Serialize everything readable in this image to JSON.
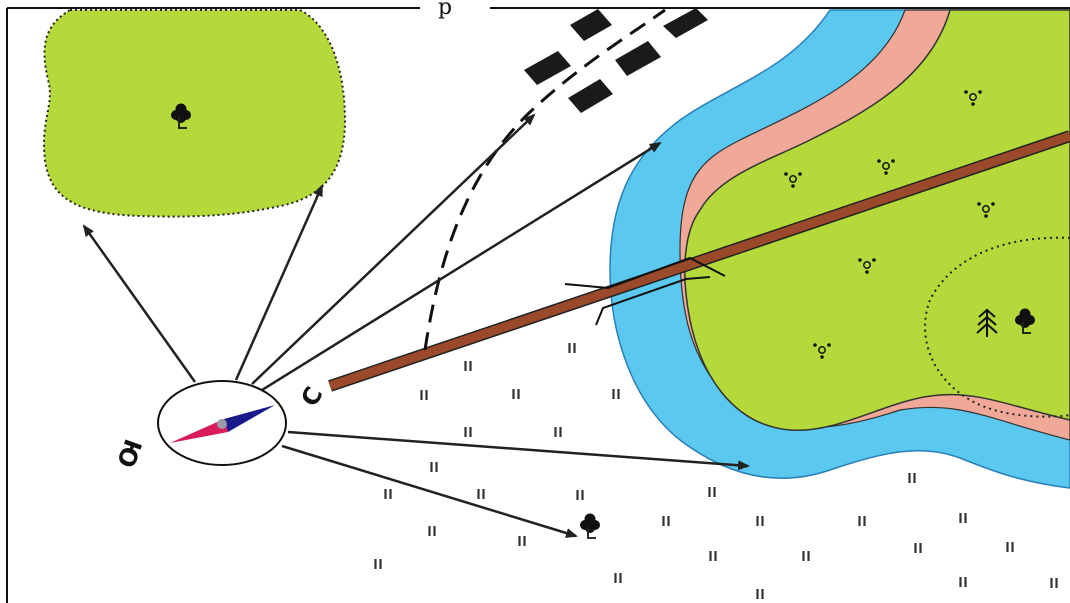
{
  "map": {
    "top_fragment": "р",
    "compass": {
      "north_label": "С",
      "south_label": "Ю",
      "needle_north_color": "#1a1a8c",
      "needle_south_color": "#d81b5a",
      "pivot_color": "#9a9aa8"
    },
    "colors": {
      "forest": "#b5d93b",
      "water": "#5ac8ef",
      "bank": "#f0a898",
      "road": "#9a4a2a",
      "outline": "#222222",
      "background": "#ffffff"
    },
    "symbols": {
      "deciduous_tree": "deciduous-tree-icon",
      "conifer_tree": "conifer-tree-icon",
      "bush": "bush-icon",
      "meadow_grass": "grass-icon",
      "bridge": "bridge-icon",
      "buildings": "building-icon"
    }
  }
}
